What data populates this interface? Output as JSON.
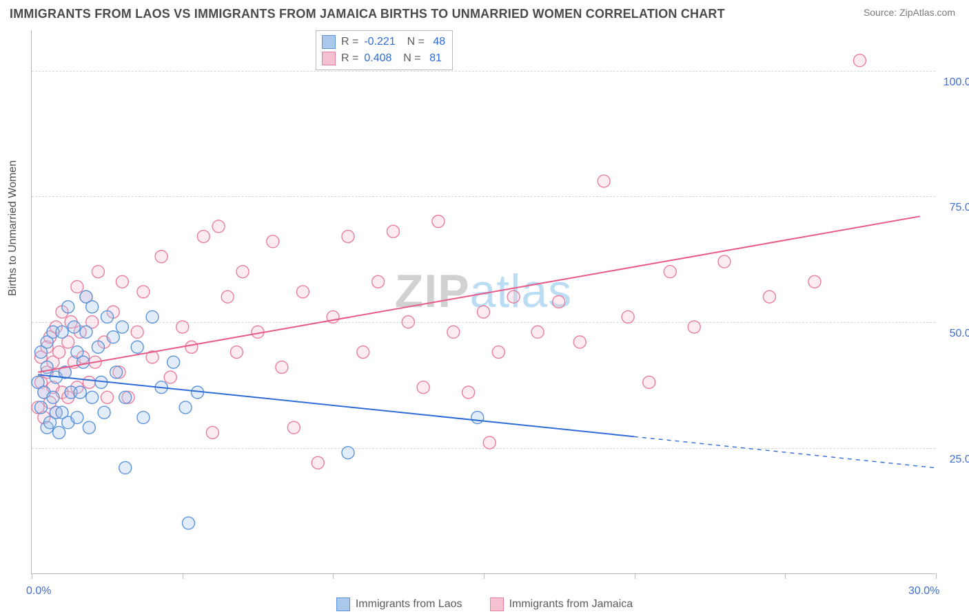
{
  "title": "IMMIGRANTS FROM LAOS VS IMMIGRANTS FROM JAMAICA BIRTHS TO UNMARRIED WOMEN CORRELATION CHART",
  "source": "Source: ZipAtlas.com",
  "y_axis_title": "Births to Unmarried Women",
  "watermark_a": "ZIP",
  "watermark_b": "atlas",
  "chart": {
    "type": "scatter",
    "xlim": [
      0,
      30
    ],
    "ylim": [
      0,
      108
    ],
    "x_ticks": [
      0,
      5,
      10,
      15,
      20,
      25,
      30
    ],
    "x_tick_labels_shown": [
      {
        "v": 0,
        "l": "0.0%"
      },
      {
        "v": 30,
        "l": "30.0%"
      }
    ],
    "y_grid": [
      25,
      50,
      75,
      100
    ],
    "y_tick_labels": [
      "25.0%",
      "50.0%",
      "75.0%",
      "100.0%"
    ],
    "background_color": "#ffffff",
    "grid_color": "#d4d4d4",
    "axis_color": "#b6b6b6",
    "axis_label_color": "#3f6fd6",
    "marker_radius": 9,
    "marker_stroke_width": 1.4,
    "marker_fill_opacity": 0.32,
    "line_width": 2
  },
  "series": [
    {
      "name": "Immigrants from Laos",
      "color_stroke": "#5a93d9",
      "color_fill": "#a9c8eb",
      "trend_color": "#2d6bd6",
      "R": "-0.221",
      "N": "48",
      "trend": {
        "x1": 0.2,
        "y1": 39.5,
        "x2": 20.0,
        "y2": 27.2,
        "x_dash_to": 30.0,
        "y_dash_to": 21.0
      },
      "points": [
        [
          0.2,
          38
        ],
        [
          0.3,
          44
        ],
        [
          0.3,
          33
        ],
        [
          0.4,
          36
        ],
        [
          0.5,
          41
        ],
        [
          0.5,
          29
        ],
        [
          0.5,
          46
        ],
        [
          0.6,
          30
        ],
        [
          0.7,
          48
        ],
        [
          0.7,
          35
        ],
        [
          0.8,
          39
        ],
        [
          0.8,
          32
        ],
        [
          0.9,
          28
        ],
        [
          1.0,
          48
        ],
        [
          1.0,
          32
        ],
        [
          1.1,
          40
        ],
        [
          1.2,
          53
        ],
        [
          1.2,
          30
        ],
        [
          1.3,
          36
        ],
        [
          1.4,
          49
        ],
        [
          1.5,
          44
        ],
        [
          1.5,
          31
        ],
        [
          1.6,
          36
        ],
        [
          1.7,
          42
        ],
        [
          1.8,
          48
        ],
        [
          1.8,
          55
        ],
        [
          1.9,
          29
        ],
        [
          2.0,
          53
        ],
        [
          2.0,
          35
        ],
        [
          2.2,
          45
        ],
        [
          2.3,
          38
        ],
        [
          2.4,
          32
        ],
        [
          2.5,
          51
        ],
        [
          2.7,
          47
        ],
        [
          2.8,
          40
        ],
        [
          3.0,
          49
        ],
        [
          3.1,
          35
        ],
        [
          3.5,
          45
        ],
        [
          3.7,
          31
        ],
        [
          4.0,
          51
        ],
        [
          4.3,
          37
        ],
        [
          4.7,
          42
        ],
        [
          5.1,
          33
        ],
        [
          5.5,
          36
        ],
        [
          3.1,
          21
        ],
        [
          5.2,
          10
        ],
        [
          10.5,
          24
        ],
        [
          14.8,
          31
        ]
      ]
    },
    {
      "name": "Immigrants from Jamaica",
      "color_stroke": "#e87d9d",
      "color_fill": "#f5c0d0",
      "trend_color": "#e85a86",
      "R": "0.408",
      "N": "81",
      "trend": {
        "x1": 0.2,
        "y1": 40.0,
        "x2": 29.5,
        "y2": 71.0
      },
      "points": [
        [
          0.2,
          33
        ],
        [
          0.3,
          38
        ],
        [
          0.3,
          43
        ],
        [
          0.4,
          31
        ],
        [
          0.4,
          36
        ],
        [
          0.5,
          45
        ],
        [
          0.5,
          40
        ],
        [
          0.6,
          34
        ],
        [
          0.6,
          47
        ],
        [
          0.7,
          42
        ],
        [
          0.7,
          37
        ],
        [
          0.8,
          32
        ],
        [
          0.8,
          49
        ],
        [
          0.9,
          44
        ],
        [
          1.0,
          36
        ],
        [
          1.0,
          52
        ],
        [
          1.1,
          40
        ],
        [
          1.2,
          46
        ],
        [
          1.2,
          35
        ],
        [
          1.3,
          50
        ],
        [
          1.4,
          42
        ],
        [
          1.5,
          57
        ],
        [
          1.5,
          37
        ],
        [
          1.6,
          48
        ],
        [
          1.7,
          43
        ],
        [
          1.8,
          55
        ],
        [
          1.9,
          38
        ],
        [
          2.0,
          50
        ],
        [
          2.1,
          42
        ],
        [
          2.2,
          60
        ],
        [
          2.4,
          46
        ],
        [
          2.5,
          35
        ],
        [
          2.7,
          52
        ],
        [
          2.9,
          40
        ],
        [
          3.0,
          58
        ],
        [
          3.2,
          35
        ],
        [
          3.5,
          48
        ],
        [
          3.7,
          56
        ],
        [
          4.0,
          43
        ],
        [
          4.3,
          63
        ],
        [
          4.6,
          39
        ],
        [
          5.0,
          49
        ],
        [
          5.3,
          45
        ],
        [
          5.7,
          67
        ],
        [
          6.0,
          28
        ],
        [
          6.2,
          69
        ],
        [
          6.5,
          55
        ],
        [
          6.8,
          44
        ],
        [
          7.0,
          60
        ],
        [
          7.5,
          48
        ],
        [
          8.0,
          66
        ],
        [
          8.3,
          41
        ],
        [
          8.7,
          29
        ],
        [
          9.0,
          56
        ],
        [
          9.5,
          22
        ],
        [
          10.0,
          51
        ],
        [
          10.5,
          67
        ],
        [
          11.0,
          44
        ],
        [
          11.5,
          58
        ],
        [
          12.0,
          68
        ],
        [
          12.5,
          50
        ],
        [
          13.0,
          37
        ],
        [
          13.5,
          70
        ],
        [
          14.0,
          48
        ],
        [
          14.5,
          36
        ],
        [
          15.0,
          52
        ],
        [
          15.5,
          44
        ],
        [
          16.0,
          55
        ],
        [
          16.8,
          48
        ],
        [
          17.5,
          54
        ],
        [
          18.2,
          46
        ],
        [
          19.0,
          78
        ],
        [
          19.8,
          51
        ],
        [
          20.5,
          38
        ],
        [
          21.2,
          60
        ],
        [
          22.0,
          49
        ],
        [
          23.0,
          62
        ],
        [
          24.5,
          55
        ],
        [
          26.0,
          58
        ],
        [
          27.5,
          102
        ],
        [
          15.2,
          26
        ]
      ]
    }
  ],
  "legend_bottom": [
    {
      "label": "Immigrants from Laos",
      "stroke": "#5a93d9",
      "fill": "#a9c8eb"
    },
    {
      "label": "Immigrants from Jamaica",
      "stroke": "#e87d9d",
      "fill": "#f5c0d0"
    }
  ]
}
